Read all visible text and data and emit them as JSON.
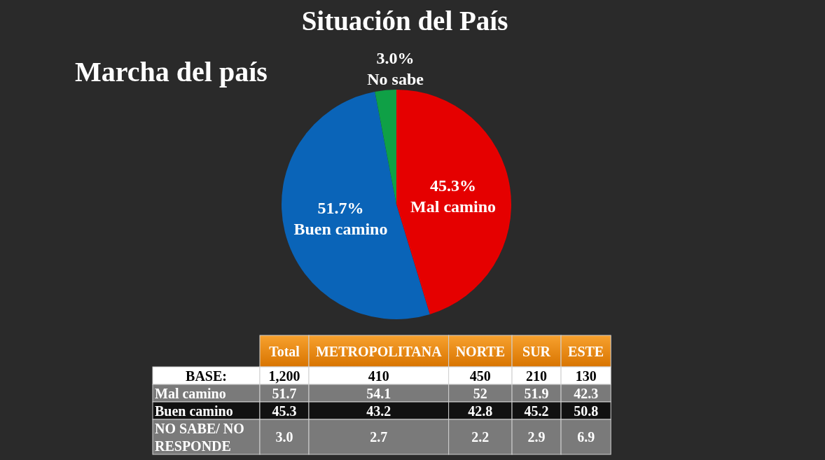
{
  "chart_data": [
    {
      "type": "pie",
      "title": "Situación del País",
      "subtitle": "Marcha del país",
      "categories": [
        "Mal camino",
        "Buen camino",
        "No sabe"
      ],
      "values": [
        45.3,
        51.7,
        3.0
      ],
      "value_labels": [
        "45.3%",
        "51.7%",
        "3.0%"
      ],
      "colors": [
        "#e50000",
        "#0a64b8",
        "#0fa046"
      ]
    },
    {
      "type": "other",
      "categories": [
        "Total",
        "METROPOLITANA",
        "NORTE",
        "SUR",
        "ESTE"
      ],
      "y_categories": [
        "BASE:",
        "Mal camino",
        "Buen camino",
        "NO SABE/ NO RESPONDE"
      ],
      "cell_labels": [
        [
          "1,200",
          "410",
          "450",
          "210",
          "130"
        ],
        [
          "51.7",
          "54.1",
          "52",
          "51.9",
          "42.3"
        ],
        [
          "45.3",
          "43.2",
          "42.8",
          "45.2",
          "50.8"
        ],
        [
          "3.0",
          "2.7",
          "2.2",
          "2.9",
          "6.9"
        ]
      ],
      "colors": [
        "#ffffff",
        "#7a7a7a",
        "#111111",
        "#7a7a7a"
      ]
    }
  ]
}
